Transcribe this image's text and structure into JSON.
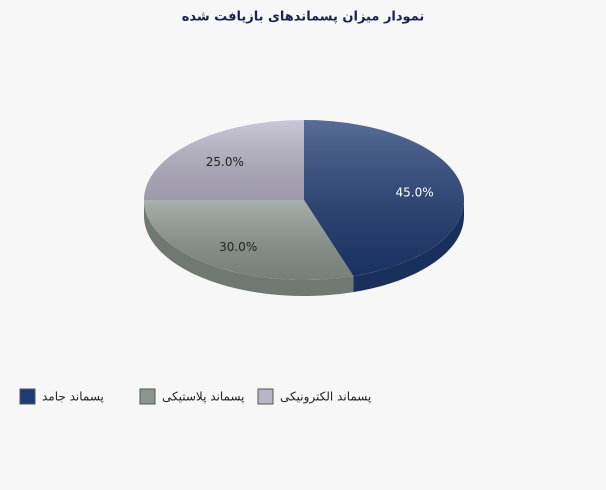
{
  "chart_data": {
    "type": "pie",
    "title": "نمودار میزان پسماندهای بازیافت شده",
    "categories": [
      "پسماند جامد",
      "پسماند پلاستیکی",
      "پسماند الکترونیکی"
    ],
    "values": [
      45,
      30,
      25
    ],
    "value_labels": [
      "45.0%",
      "30.0%",
      "25.0%"
    ],
    "colors": [
      "#1f3b73",
      "#8c968f",
      "#b9b5c9"
    ],
    "legend": "bottom"
  }
}
